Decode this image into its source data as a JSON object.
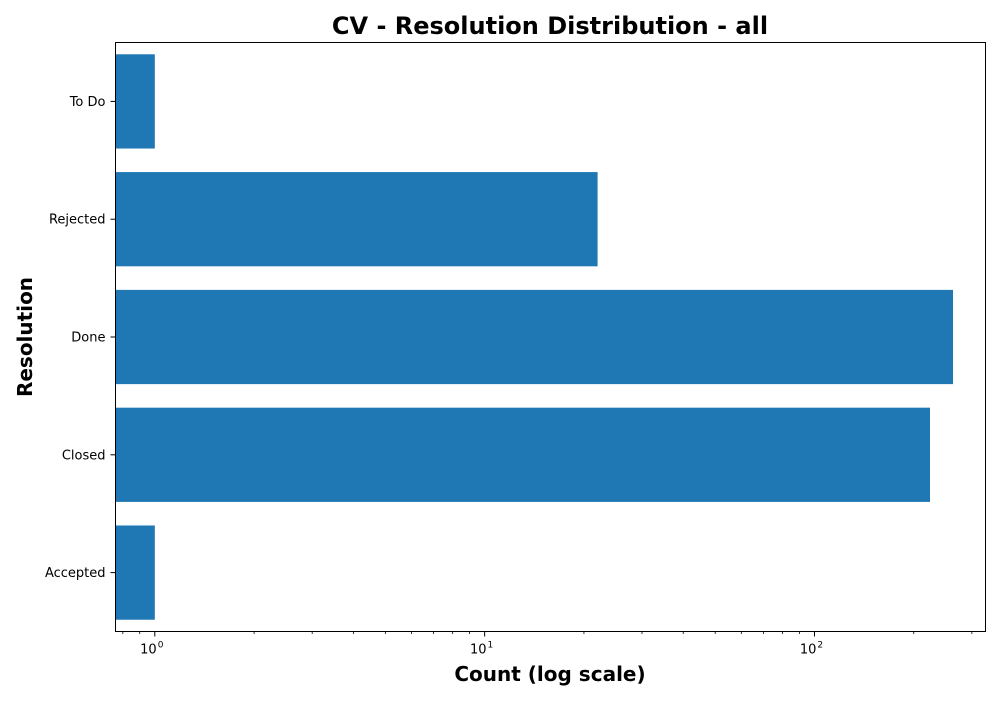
{
  "chart_data": {
    "type": "bar",
    "orientation": "horizontal",
    "title": "CV - Resolution Distribution - all",
    "xlabel": "Count (log scale)",
    "ylabel": "Resolution",
    "x_scale": "log",
    "xlim": [
      0.76,
      330
    ],
    "categories": [
      "To Do",
      "Rejected",
      "Done",
      "Closed",
      "Accepted"
    ],
    "values": [
      1,
      22,
      263,
      224,
      1
    ],
    "x_major_ticks": [
      {
        "value": 1,
        "base": "10",
        "exp": "0"
      },
      {
        "value": 10,
        "base": "10",
        "exp": "1"
      },
      {
        "value": 100,
        "base": "10",
        "exp": "2"
      }
    ],
    "bar_color": "#1f77b4",
    "grid": false,
    "legend": null
  }
}
